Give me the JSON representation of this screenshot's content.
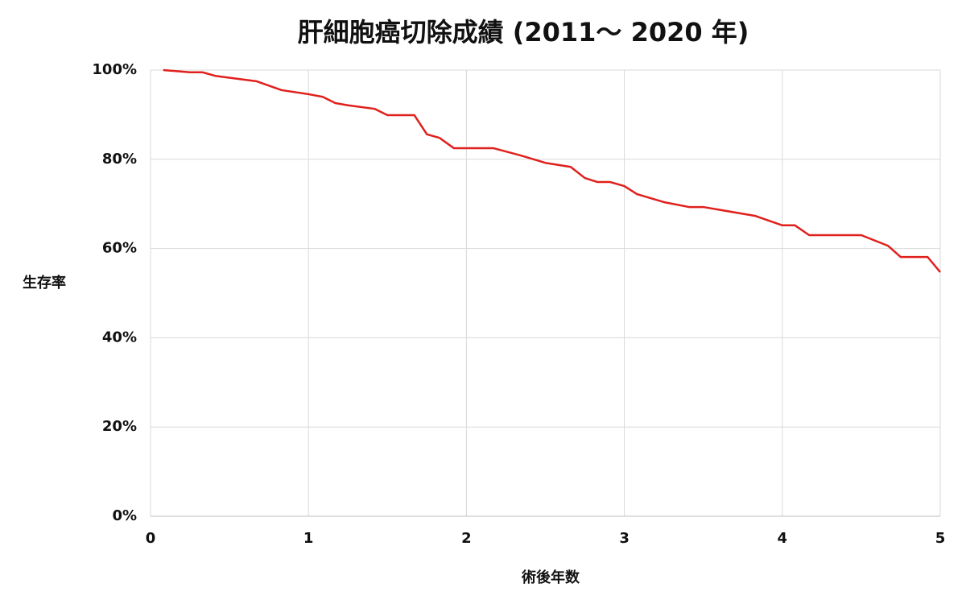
{
  "chart_data": {
    "type": "line",
    "title": "肝細胞癌切除成績 (2011～ 2020 年)",
    "x_label": "術後年数",
    "y_label": "生存率",
    "series": [
      {
        "name": "生存率",
        "color": "#e0201c",
        "x": [
          0.08,
          0.25,
          0.33,
          0.41,
          0.67,
          0.83,
          1.0,
          1.09,
          1.17,
          1.25,
          1.42,
          1.5,
          1.67,
          1.75,
          1.83,
          1.92,
          2.17,
          2.34,
          2.5,
          2.66,
          2.75,
          2.83,
          2.91,
          3.0,
          3.08,
          3.25,
          3.41,
          3.5,
          3.83,
          4.0,
          4.08,
          4.17,
          4.5,
          4.67,
          4.75,
          4.92,
          5.0
        ],
        "values": [
          100,
          99.5,
          99.5,
          98.7,
          97.5,
          95.5,
          94.6,
          94.0,
          92.6,
          92.1,
          91.3,
          89.9,
          89.9,
          85.6,
          84.8,
          82.5,
          82.5,
          80.9,
          79.2,
          78.3,
          75.8,
          74.9,
          74.9,
          74.0,
          72.2,
          70.4,
          69.3,
          69.3,
          67.3,
          65.2,
          65.2,
          63.0,
          63.0,
          60.6,
          58.1,
          58.1,
          54.7
        ]
      }
    ],
    "xlim": [
      0,
      5
    ],
    "xticks": [
      0,
      1,
      2,
      3,
      4,
      5
    ],
    "ylim": [
      0,
      100
    ],
    "yticks": [
      {
        "value": 0,
        "label": "0%"
      },
      {
        "value": 20,
        "label": "20%"
      },
      {
        "value": 40,
        "label": "40%"
      },
      {
        "value": 60,
        "label": "60%"
      },
      {
        "value": 80,
        "label": "80%"
      },
      {
        "value": 100,
        "label": "100%"
      }
    ],
    "grid": true
  }
}
